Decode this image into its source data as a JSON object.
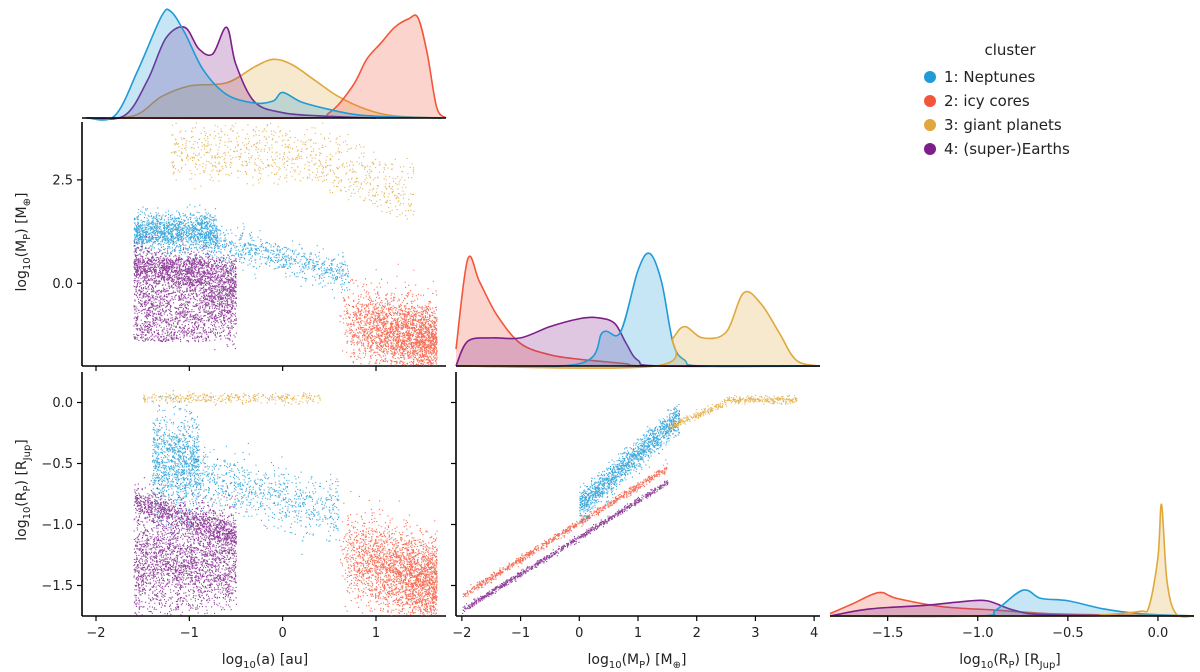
{
  "chart_data": {
    "type": "pairplot-kde-scatter",
    "variables": [
      "log10(a)",
      "log10(M_P)",
      "log10(R_P)"
    ],
    "legend": {
      "title": "cluster",
      "placement": "top-right",
      "entries": [
        {
          "label": "1: Neptunes",
          "color": "#1f9bd7"
        },
        {
          "label": "2: icy cores",
          "color": "#f4553a"
        },
        {
          "label": "3: giant planets",
          "color": "#e0a83a"
        },
        {
          "label": "4: (super-)Earths",
          "color": "#7e1e8a"
        }
      ]
    },
    "axes": {
      "a": {
        "label_prefix": "log",
        "label_sub": "10",
        "label_rest": "(a) [au]",
        "lim": [
          -2.15,
          1.75
        ],
        "ticks": [
          {
            "v": -2,
            "t": "−2"
          },
          {
            "v": -1,
            "t": "−1"
          },
          {
            "v": 0,
            "t": "0"
          },
          {
            "v": 1,
            "t": "1"
          }
        ]
      },
      "m": {
        "label_prefix": "log",
        "label_sub": "10",
        "label_rest_1": "(M",
        "label_sub2": "P",
        "label_rest_2": ") [M",
        "label_sub3": "⊕",
        "label_rest_3": "]",
        "lim": [
          -2.1,
          4.1
        ],
        "ticks": [
          {
            "v": -2,
            "t": "−2"
          },
          {
            "v": -1,
            "t": "−1"
          },
          {
            "v": 0,
            "t": "0"
          },
          {
            "v": 1,
            "t": "1"
          },
          {
            "v": 2,
            "t": "2"
          },
          {
            "v": 3,
            "t": "3"
          },
          {
            "v": 4,
            "t": "4"
          }
        ],
        "yticks": [
          {
            "v": 0,
            "t": "0.0"
          },
          {
            "v": 2.5,
            "t": "2.5"
          }
        ],
        "ylim": [
          -2.0,
          3.9
        ]
      },
      "r": {
        "label_prefix": "log",
        "label_sub": "10",
        "label_rest_1": "(R",
        "label_sub2": "P",
        "label_rest_2": ") [R",
        "label_sub3": "Jup",
        "label_rest_3": "]",
        "lim": [
          -1.82,
          0.2
        ],
        "ticks": [
          {
            "v": -1.5,
            "t": "−1.5"
          },
          {
            "v": -1.0,
            "t": "−1.0"
          },
          {
            "v": -0.5,
            "t": "−0.5"
          },
          {
            "v": 0.0,
            "t": "0.0"
          }
        ],
        "yticks": [
          {
            "v": -1.5,
            "t": "−1.5"
          },
          {
            "v": -1.0,
            "t": "−1.0"
          },
          {
            "v": -0.5,
            "t": "−0.5"
          },
          {
            "v": 0.0,
            "t": "0.0"
          }
        ],
        "ylim": [
          -1.75,
          0.25
        ]
      }
    },
    "kde": {
      "a": {
        "neptunes": [
          [
            -2.1,
            0
          ],
          [
            -1.8,
            0.02
          ],
          [
            -1.55,
            0.45
          ],
          [
            -1.3,
            0.95
          ],
          [
            -1.2,
            1.0
          ],
          [
            -1.05,
            0.8
          ],
          [
            -0.85,
            0.45
          ],
          [
            -0.6,
            0.22
          ],
          [
            -0.3,
            0.14
          ],
          [
            -0.1,
            0.16
          ],
          [
            0.0,
            0.24
          ],
          [
            0.2,
            0.15
          ],
          [
            0.5,
            0.08
          ],
          [
            0.8,
            0.03
          ],
          [
            1.2,
            0.01
          ],
          [
            1.7,
            0
          ]
        ],
        "icycores": [
          [
            -2.1,
            0
          ],
          [
            0.2,
            0
          ],
          [
            0.5,
            0.05
          ],
          [
            0.75,
            0.3
          ],
          [
            0.9,
            0.55
          ],
          [
            1.05,
            0.7
          ],
          [
            1.2,
            0.85
          ],
          [
            1.35,
            0.93
          ],
          [
            1.45,
            0.94
          ],
          [
            1.55,
            0.6
          ],
          [
            1.65,
            0.1
          ],
          [
            1.75,
            0
          ]
        ],
        "giants": [
          [
            -2.1,
            0
          ],
          [
            -1.6,
            0.02
          ],
          [
            -1.3,
            0.2
          ],
          [
            -1.0,
            0.3
          ],
          [
            -0.6,
            0.33
          ],
          [
            -0.3,
            0.48
          ],
          [
            -0.1,
            0.55
          ],
          [
            0.1,
            0.5
          ],
          [
            0.35,
            0.35
          ],
          [
            0.6,
            0.2
          ],
          [
            0.9,
            0.08
          ],
          [
            1.2,
            0.02
          ],
          [
            1.7,
            0
          ]
        ],
        "earths": [
          [
            -2.1,
            0
          ],
          [
            -1.7,
            0.02
          ],
          [
            -1.45,
            0.35
          ],
          [
            -1.25,
            0.75
          ],
          [
            -1.05,
            0.85
          ],
          [
            -0.9,
            0.65
          ],
          [
            -0.75,
            0.6
          ],
          [
            -0.6,
            0.85
          ],
          [
            -0.5,
            0.5
          ],
          [
            -0.3,
            0.15
          ],
          [
            0,
            0.05
          ],
          [
            0.4,
            0.02
          ],
          [
            1.0,
            0
          ]
        ]
      },
      "m": {
        "icycores": [
          [
            -2.1,
            0.15
          ],
          [
            -1.9,
            0.95
          ],
          [
            -1.7,
            0.75
          ],
          [
            -1.4,
            0.45
          ],
          [
            -1.0,
            0.2
          ],
          [
            -0.5,
            0.1
          ],
          [
            0,
            0.06
          ],
          [
            0.4,
            0.04
          ],
          [
            0.8,
            0.02
          ],
          [
            1.2,
            0
          ],
          [
            4.1,
            0
          ]
        ],
        "earths": [
          [
            -2.1,
            0
          ],
          [
            -1.9,
            0.22
          ],
          [
            -1.5,
            0.25
          ],
          [
            -1.0,
            0.25
          ],
          [
            -0.5,
            0.35
          ],
          [
            0,
            0.42
          ],
          [
            0.3,
            0.43
          ],
          [
            0.6,
            0.38
          ],
          [
            0.8,
            0.2
          ],
          [
            1.0,
            0.05
          ],
          [
            1.4,
            0
          ],
          [
            4.1,
            0
          ]
        ],
        "neptunes": [
          [
            -2.1,
            0
          ],
          [
            0.0,
            0.02
          ],
          [
            0.4,
            0.3
          ],
          [
            0.7,
            0.3
          ],
          [
            1.0,
            0.85
          ],
          [
            1.2,
            1.0
          ],
          [
            1.4,
            0.75
          ],
          [
            1.6,
            0.2
          ],
          [
            1.8,
            0.05
          ],
          [
            2.1,
            0
          ],
          [
            4.1,
            0
          ]
        ],
        "giants": [
          [
            -2.1,
            0
          ],
          [
            1.3,
            0
          ],
          [
            1.6,
            0.25
          ],
          [
            1.8,
            0.35
          ],
          [
            2.1,
            0.25
          ],
          [
            2.5,
            0.3
          ],
          [
            2.8,
            0.65
          ],
          [
            3.1,
            0.55
          ],
          [
            3.4,
            0.3
          ],
          [
            3.7,
            0.05
          ],
          [
            4.1,
            0
          ]
        ]
      },
      "r": {
        "icycores": [
          [
            -1.82,
            0.02
          ],
          [
            -1.7,
            0.1
          ],
          [
            -1.55,
            0.2
          ],
          [
            -1.45,
            0.15
          ],
          [
            -1.2,
            0.08
          ],
          [
            -0.9,
            0.05
          ],
          [
            -0.6,
            0.02
          ],
          [
            -0.3,
            0.01
          ],
          [
            0.2,
            0
          ]
        ],
        "earths": [
          [
            -1.82,
            0
          ],
          [
            -1.6,
            0.06
          ],
          [
            -1.3,
            0.09
          ],
          [
            -1.1,
            0.12
          ],
          [
            -0.95,
            0.13
          ],
          [
            -0.8,
            0.05
          ],
          [
            -0.6,
            0.01
          ],
          [
            0.2,
            0
          ]
        ],
        "neptunes": [
          [
            -1.82,
            0
          ],
          [
            -1.0,
            0
          ],
          [
            -0.9,
            0.05
          ],
          [
            -0.75,
            0.22
          ],
          [
            -0.65,
            0.15
          ],
          [
            -0.5,
            0.13
          ],
          [
            -0.3,
            0.06
          ],
          [
            -0.1,
            0.02
          ],
          [
            0.2,
            0
          ]
        ],
        "giants": [
          [
            -1.82,
            0
          ],
          [
            -0.5,
            0
          ],
          [
            -0.3,
            0.01
          ],
          [
            -0.1,
            0.04
          ],
          [
            -0.05,
            0.08
          ],
          [
            0.0,
            0.5
          ],
          [
            0.02,
            0.95
          ],
          [
            0.05,
            0.3
          ],
          [
            0.1,
            0.02
          ],
          [
            0.2,
            0
          ]
        ]
      }
    }
  }
}
